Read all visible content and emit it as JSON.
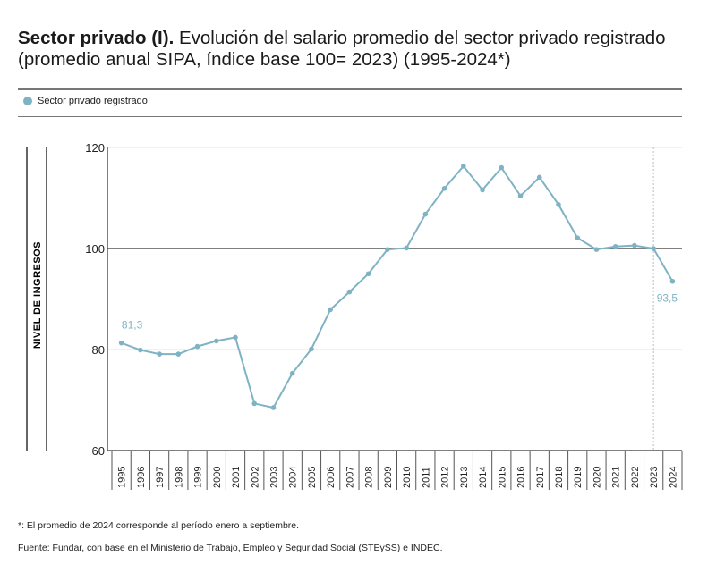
{
  "title": {
    "bold": "Sector privado (I).",
    "rest": " Evolución del salario promedio del sector privado registrado (promedio anual SIPA, índice base 100= 2023) (1995-2024*)"
  },
  "legend": {
    "label": "Sector privado registrado",
    "color": "#7fb3c4"
  },
  "chart_data": {
    "type": "line",
    "title": "Sector privado (I). Evolución del salario promedio del sector privado registrado (promedio anual SIPA, índice base 100= 2023) (1995-2024*)",
    "ylabel": "NIVEL DE INGRESOS",
    "xlabel": "",
    "ylim": [
      60,
      120
    ],
    "yticks": [
      60,
      80,
      100,
      120
    ],
    "x": [
      "1995",
      "1996",
      "1997",
      "1998",
      "1999",
      "2000",
      "2001",
      "2002",
      "2003",
      "2004",
      "2005",
      "2006",
      "2007",
      "2008",
      "2009",
      "2010",
      "2011",
      "2012",
      "2013",
      "2014",
      "2015",
      "2016",
      "2017",
      "2018",
      "2019",
      "2020",
      "2021",
      "2022",
      "2023",
      "2024"
    ],
    "series": [
      {
        "name": "Sector privado registrado",
        "values": [
          81.3,
          79.9,
          79.1,
          79.1,
          80.6,
          81.7,
          82.4,
          69.3,
          68.5,
          75.3,
          80.1,
          87.9,
          91.4,
          95.0,
          99.8,
          100.1,
          106.8,
          111.9,
          116.3,
          111.6,
          116.0,
          110.4,
          114.1,
          108.7,
          102.1,
          99.8,
          100.4,
          100.6,
          100.0,
          93.5
        ]
      }
    ],
    "annotations": [
      {
        "x": "1995",
        "text": "81,3"
      },
      {
        "x": "2024",
        "text": "93,5"
      }
    ],
    "reference_line": 100,
    "marker_line_x": "2023",
    "legend": "top-left"
  },
  "footnotes": [
    "*: El promedio de 2024 corresponde al período enero a septiembre.",
    "Fuente: Fundar, con base en el Ministerio de Trabajo, Empleo y Seguridad Social (STEySS) e INDEC."
  ]
}
